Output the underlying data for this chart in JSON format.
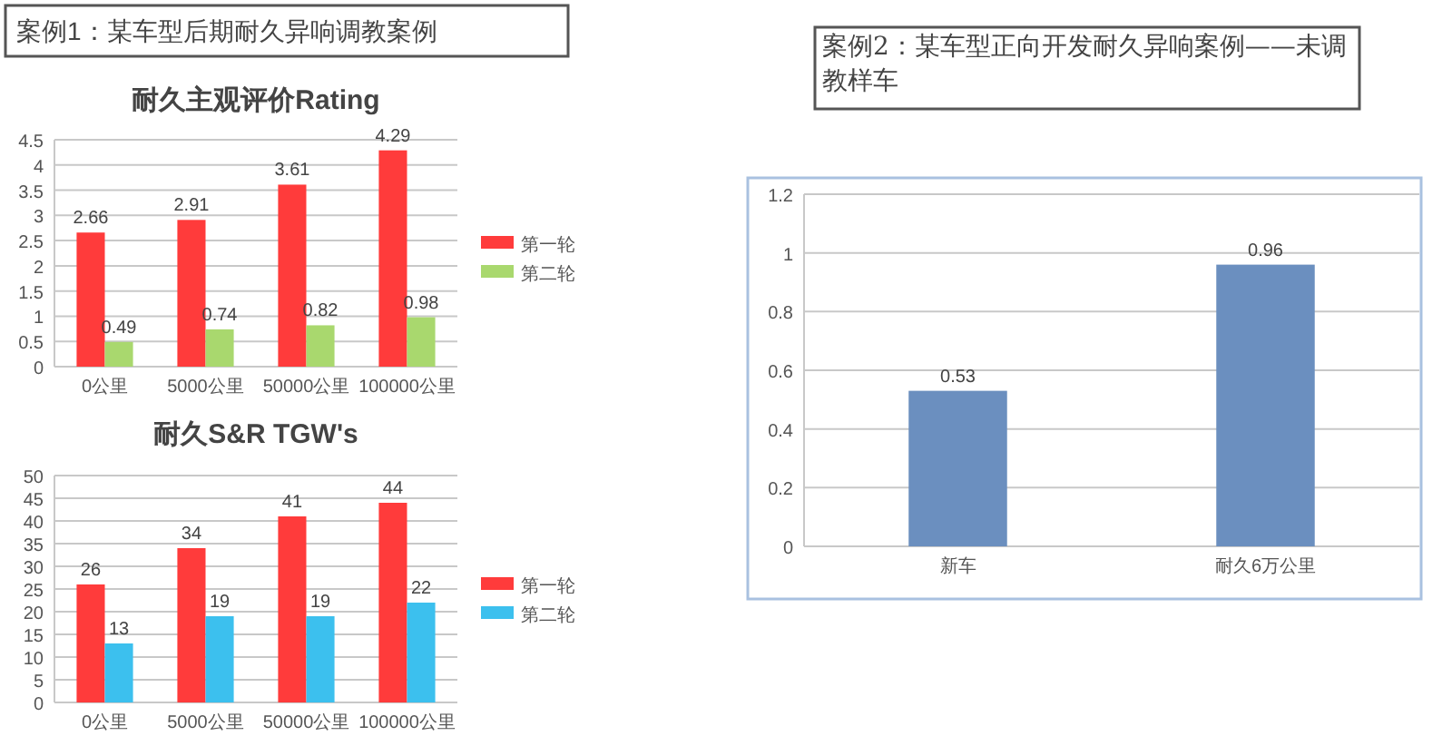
{
  "chart_data": [
    {
      "type": "bar",
      "title": "耐久主观评价Rating",
      "annotations": [
        "案例1：某车型后期耐久异响调教案例"
      ],
      "categories": [
        "0公里",
        "5000公里",
        "50000公里",
        "100000公里"
      ],
      "series": [
        {
          "name": "第一轮",
          "color": "#ff3b3b",
          "values": [
            2.66,
            2.91,
            3.61,
            4.29
          ]
        },
        {
          "name": "第二轮",
          "color": "#a9d86e",
          "values": [
            0.49,
            0.74,
            0.82,
            0.98
          ]
        }
      ],
      "ylim": [
        0,
        4.5
      ],
      "yticks": [
        0,
        0.5,
        1,
        1.5,
        2,
        2.5,
        3,
        3.5,
        4,
        4.5
      ],
      "grid": "y",
      "legend": "right",
      "data_labels": true
    },
    {
      "type": "bar",
      "title": "耐久S&R TGW's",
      "categories": [
        "0公里",
        "5000公里",
        "50000公里",
        "100000公里"
      ],
      "series": [
        {
          "name": "第一轮",
          "color": "#ff3b3b",
          "values": [
            26,
            34,
            41,
            44
          ]
        },
        {
          "name": "第二轮",
          "color": "#3cc0ee",
          "values": [
            13,
            19,
            19,
            22
          ]
        }
      ],
      "ylim": [
        0,
        50
      ],
      "yticks": [
        0,
        5,
        10,
        15,
        20,
        25,
        30,
        35,
        40,
        45,
        50
      ],
      "grid": "y",
      "legend": "right",
      "data_labels": true
    },
    {
      "type": "bar",
      "title": "案例2：某车型正向开发耐久异响案例——未调教样车",
      "categories": [
        "新车",
        "耐久6万公里"
      ],
      "values": [
        0.53,
        0.96
      ],
      "color": "#6b8fbf",
      "ylim": [
        0,
        1.2
      ],
      "yticks": [
        0,
        0.2,
        0.4,
        0.6,
        0.8,
        1,
        1.2
      ],
      "grid": "y",
      "data_labels": true
    }
  ]
}
